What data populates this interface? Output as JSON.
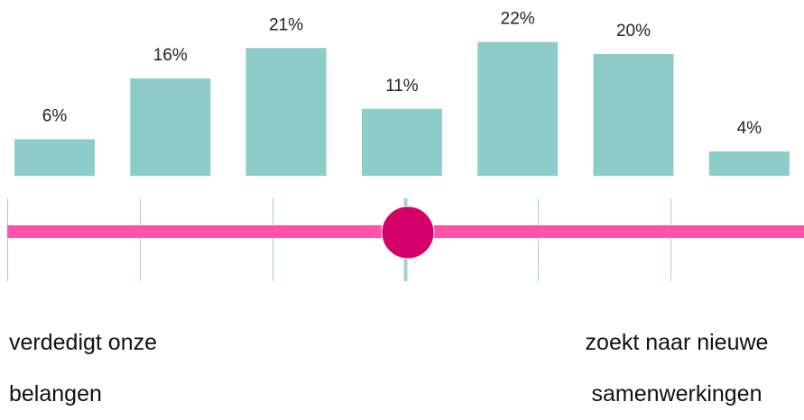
{
  "chart_data": {
    "type": "bar",
    "values": [
      6,
      16,
      21,
      11,
      22,
      20,
      4
    ],
    "value_labels": [
      "6%",
      "16%",
      "21%",
      "11%",
      "22%",
      "20%",
      "4%"
    ],
    "color": "#8ccdca",
    "annotations": [
      "verdedigt onze belangen",
      "zoekt naar nieuwe samenwerkingen"
    ]
  }
}
